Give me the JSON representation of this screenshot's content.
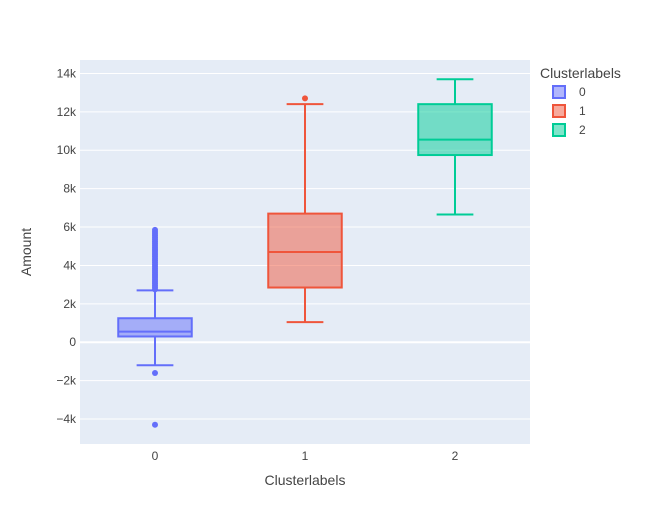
{
  "chart_data": {
    "type": "box",
    "xlabel": "Clusterlabels",
    "ylabel": "Amount",
    "legend_title": "Clusterlabels",
    "legend_position": "top-right",
    "grid": true,
    "ylim": [
      -5300,
      14700
    ],
    "y_ticks": [
      {
        "value": -4000,
        "label": "−4k"
      },
      {
        "value": -2000,
        "label": "−2k"
      },
      {
        "value": 0,
        "label": "0"
      },
      {
        "value": 2000,
        "label": "2k"
      },
      {
        "value": 4000,
        "label": "4k"
      },
      {
        "value": 6000,
        "label": "6k"
      },
      {
        "value": 8000,
        "label": "8k"
      },
      {
        "value": 10000,
        "label": "10k"
      },
      {
        "value": 12000,
        "label": "12k"
      },
      {
        "value": 14000,
        "label": "14k"
      }
    ],
    "categories": [
      "0",
      "1",
      "2"
    ],
    "series": [
      {
        "name": "0",
        "color": "#636efa",
        "lower_fence": -1200,
        "q1": 300,
        "median": 550,
        "q3": 1250,
        "upper_fence": 2700,
        "outliers": [
          -4300,
          -1600,
          2750,
          2850,
          2950,
          3050,
          3150,
          3250,
          3350,
          3450,
          3550,
          3650,
          3750,
          3850,
          3950,
          4050,
          4150,
          4250,
          4350,
          4450,
          4550,
          4650,
          4750,
          4850,
          4950,
          5050,
          5150,
          5250,
          5350,
          5450,
          5550,
          5650,
          5750,
          5850
        ]
      },
      {
        "name": "1",
        "color": "#ef553b",
        "lower_fence": 1050,
        "q1": 2850,
        "median": 4700,
        "q3": 6700,
        "upper_fence": 12400,
        "outliers": [
          12700
        ]
      },
      {
        "name": "2",
        "color": "#00cc96",
        "lower_fence": 6650,
        "q1": 9750,
        "median": 10550,
        "q3": 12400,
        "upper_fence": 13700,
        "outliers": []
      }
    ]
  }
}
